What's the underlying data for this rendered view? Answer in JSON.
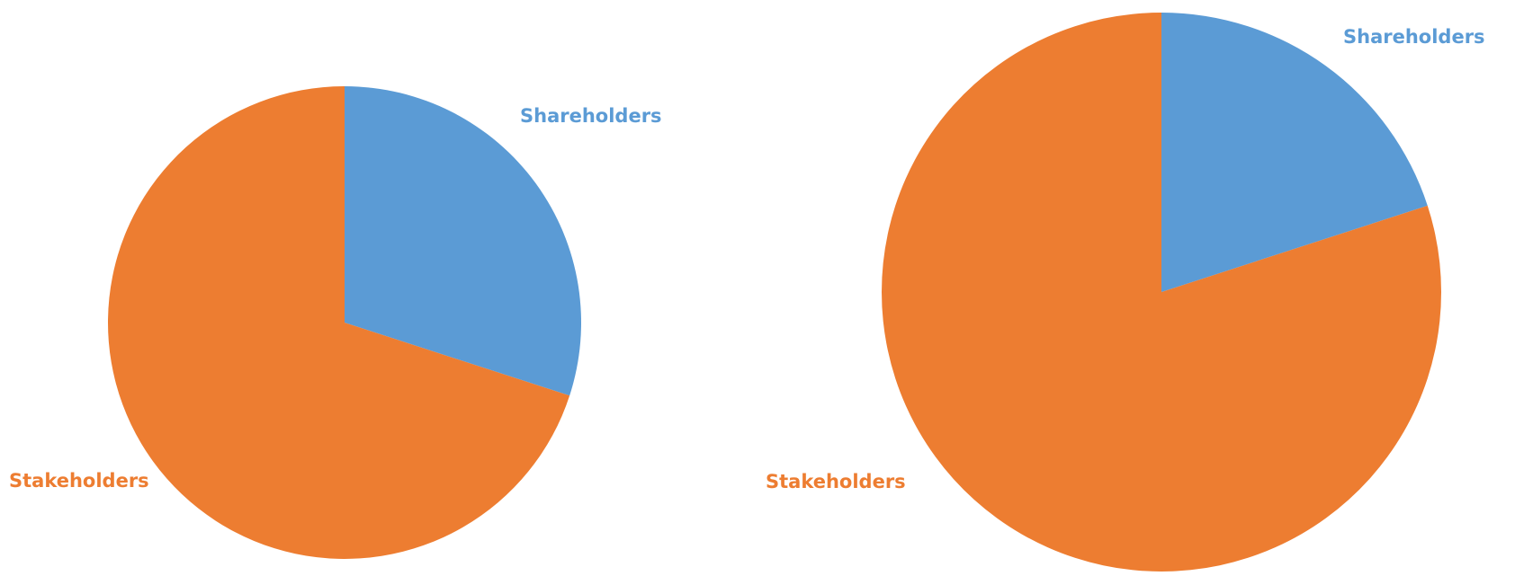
{
  "chart_data": [
    {
      "type": "pie",
      "categories": [
        "Shareholders",
        "Stakeholders"
      ],
      "values": [
        30,
        70
      ],
      "colors": [
        "#5b9bd5",
        "#ed7d31"
      ]
    },
    {
      "type": "pie",
      "categories": [
        "Shareholders",
        "Stakeholders"
      ],
      "values": [
        20,
        80
      ],
      "colors": [
        "#5b9bd5",
        "#ed7d31"
      ]
    }
  ]
}
